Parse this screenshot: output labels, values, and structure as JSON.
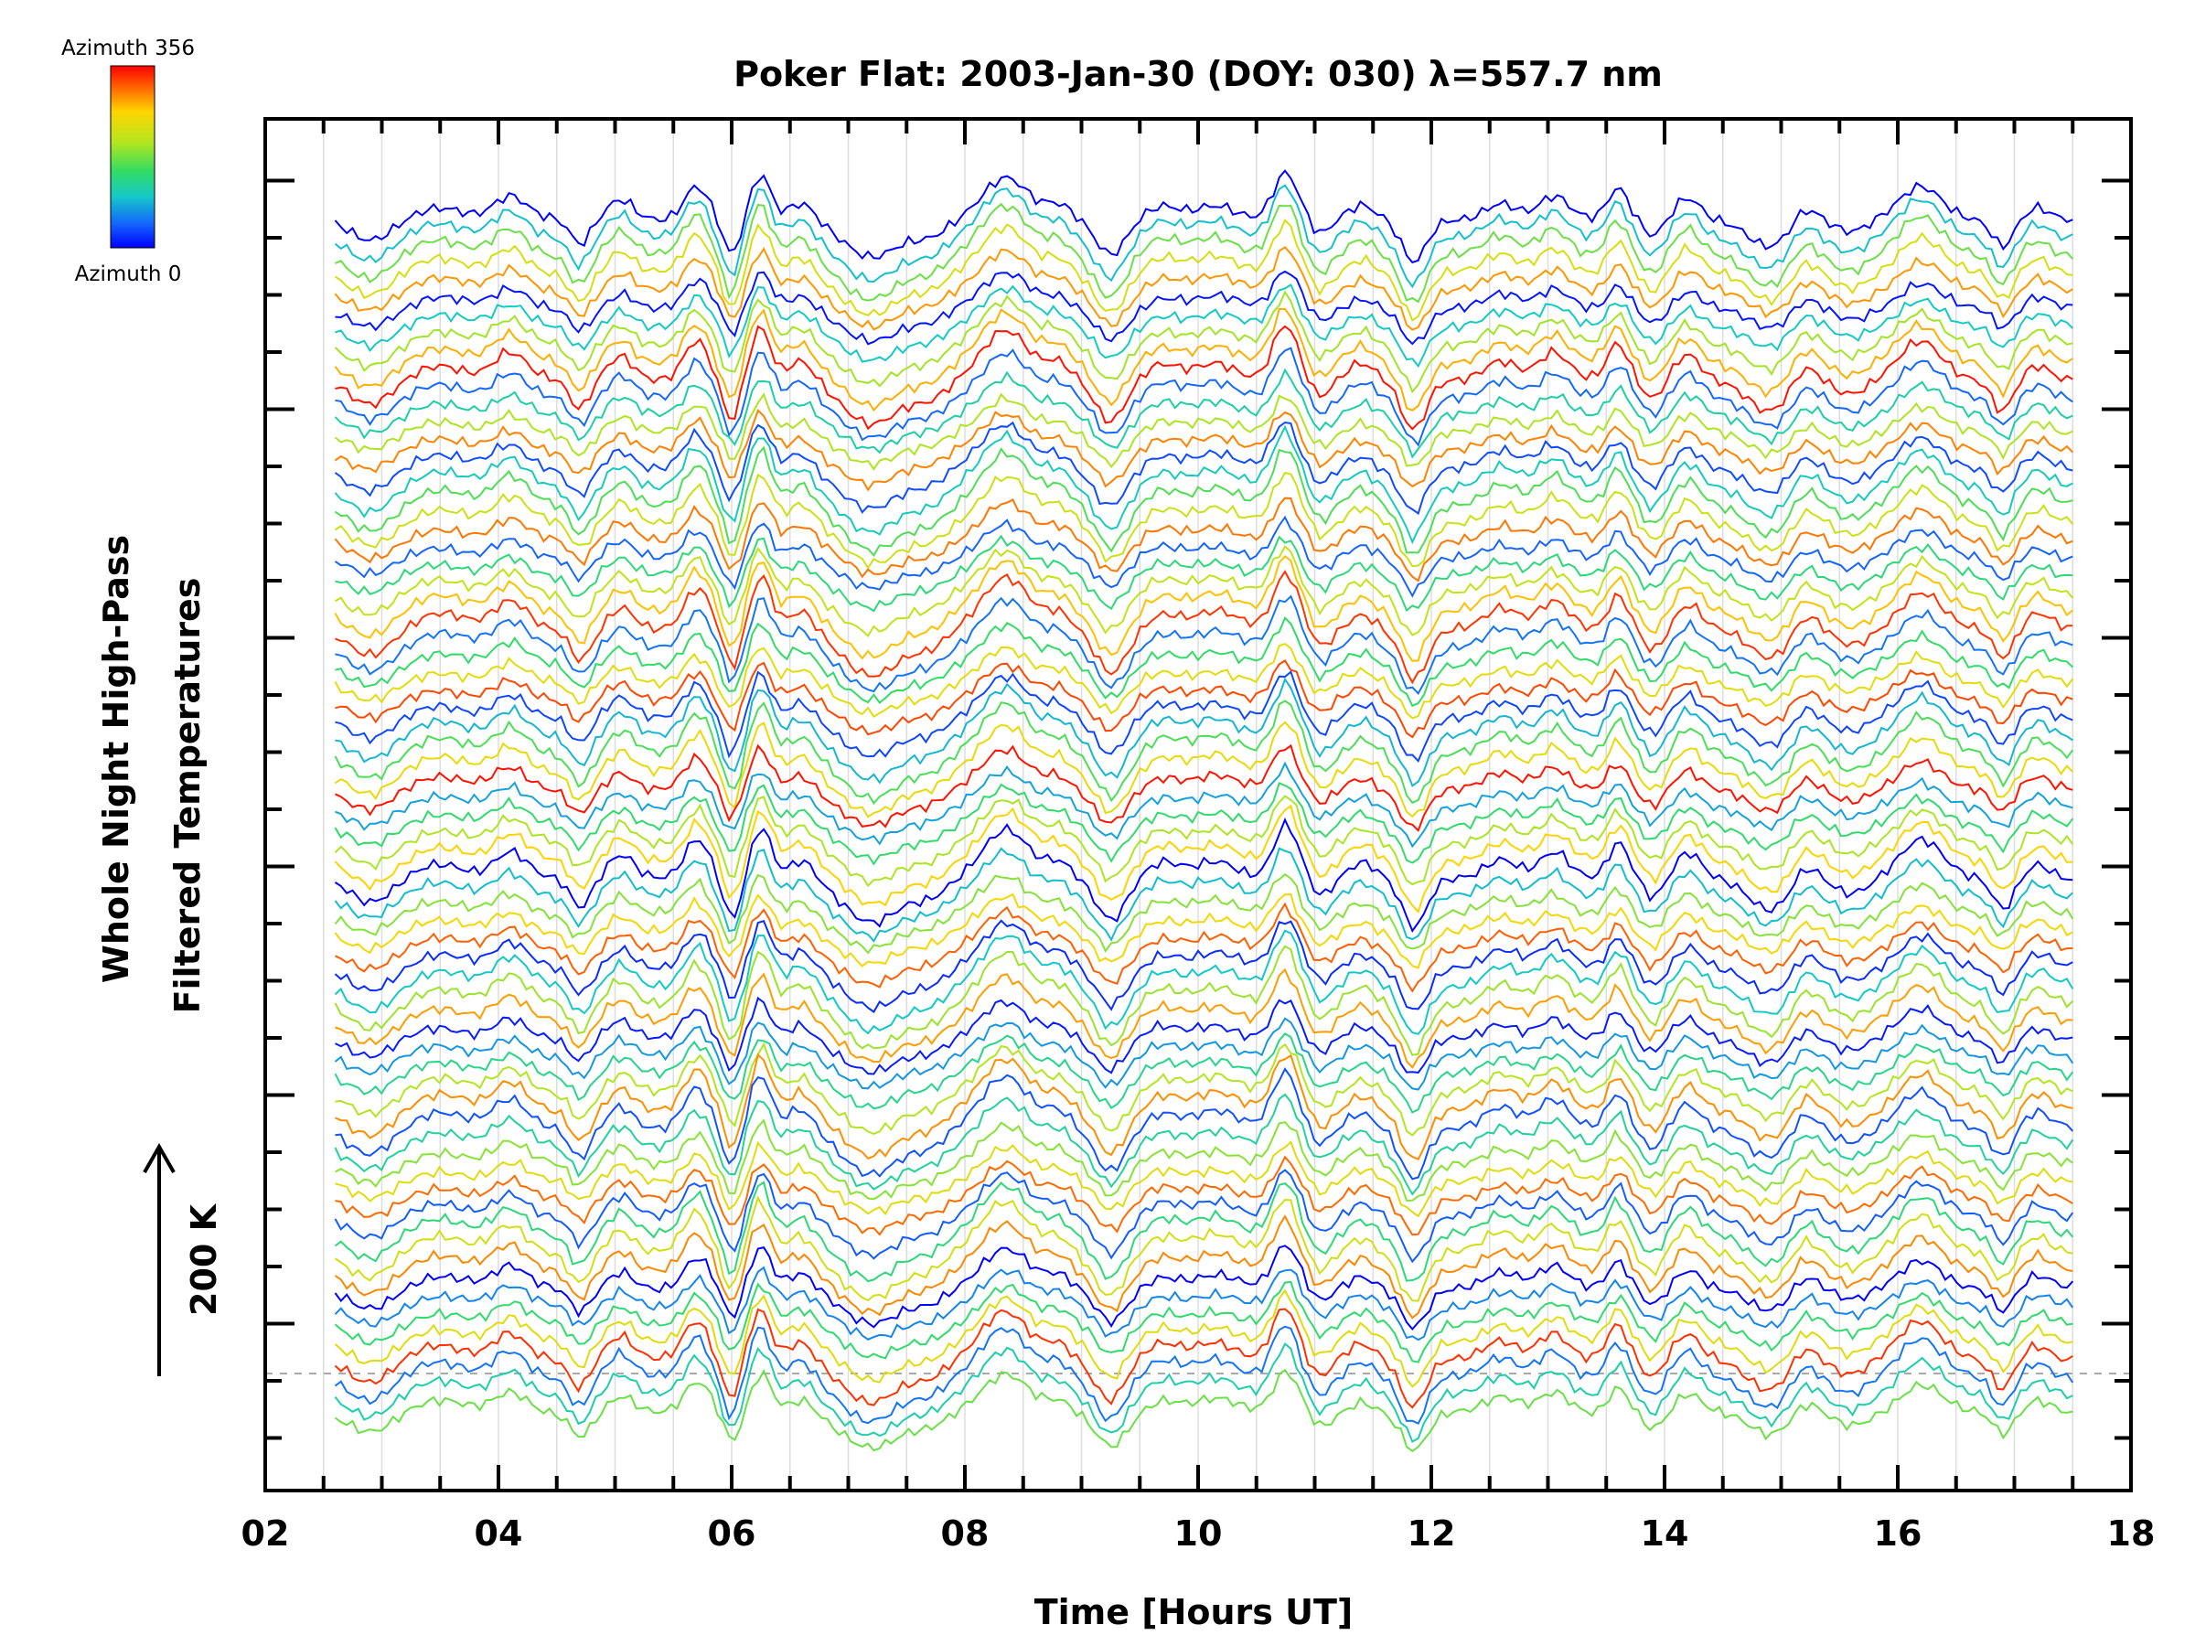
{
  "chart_data": {
    "type": "line",
    "title": "Poker Flat: 2003-Jan-30 (DOY: 030) λ=557.7 nm",
    "xlabel": "Time [Hours UT]",
    "ylabel": [
      "Whole Night High-Pass",
      "Filtered Temperatures"
    ],
    "x_tick_labels": [
      "02",
      "04",
      "06",
      "08",
      "10",
      "12",
      "14",
      "16",
      "18"
    ],
    "x_ticks": [
      2,
      4,
      6,
      8,
      10,
      12,
      14,
      16,
      18
    ],
    "xlim": [
      2,
      18
    ],
    "x_range": [
      2.6,
      17.5
    ],
    "y_scale_label": "200 K",
    "y_tick_labels_shown": false,
    "colorbar": {
      "top_label": "Azimuth  356",
      "bottom_label": "Azimuth  0",
      "range": [
        0,
        356
      ],
      "colors": [
        "#ff0000",
        "#ffd400",
        "#b4e61e",
        "#32dc64",
        "#14c8c8",
        "#1464ff",
        "#0000ff"
      ]
    },
    "series_count": 68,
    "grid": "vertical lines",
    "baseline": "dashed grey line at the lowest trace level",
    "series_description": "stacked per-azimuth high-pass filtered temperature traces colored by azimuth; shared features: peaks near 06.2, 08.4, 10.8 UT and minima near 07.2, 09.3, 11.9 UT"
  }
}
